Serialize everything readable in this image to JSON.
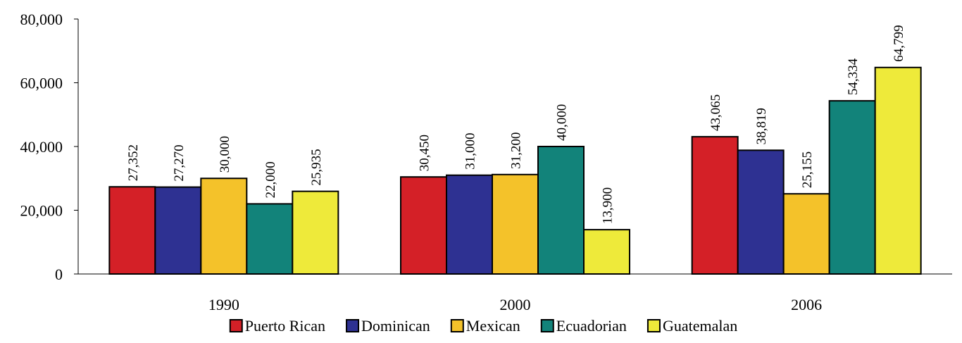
{
  "chart_data": {
    "type": "bar",
    "title": "",
    "xlabel": "",
    "ylabel": "",
    "categories": [
      "1990",
      "2000",
      "2006"
    ],
    "ylim": [
      0,
      80000
    ],
    "yticks": [
      0,
      20000,
      40000,
      60000,
      80000
    ],
    "ytick_labels": [
      "0",
      "20,000",
      "40,000",
      "60,000",
      "80,000"
    ],
    "grid": false,
    "legend_position": "bottom",
    "series": [
      {
        "name": "Puerto Rican",
        "color": "#d42027",
        "values": [
          27352,
          30450,
          43065
        ],
        "labels": [
          "27,352",
          "30,450",
          "43,065"
        ]
      },
      {
        "name": "Dominican",
        "color": "#2e3192",
        "values": [
          27270,
          31000,
          38819
        ],
        "labels": [
          "27,270",
          "31,000",
          "38,819"
        ]
      },
      {
        "name": "Mexican",
        "color": "#f4c22a",
        "values": [
          30000,
          31200,
          25155
        ],
        "labels": [
          "30,000",
          "31,200",
          "25,155"
        ]
      },
      {
        "name": "Ecuadorian",
        "color": "#12837a",
        "values": [
          22000,
          40000,
          54334
        ],
        "labels": [
          "22,000",
          "40,000",
          "54,334"
        ]
      },
      {
        "name": "Guatemalan",
        "color": "#eeea3a",
        "values": [
          25935,
          13900,
          64799
        ],
        "labels": [
          "25,935",
          "13,900",
          "64,799"
        ]
      }
    ]
  }
}
